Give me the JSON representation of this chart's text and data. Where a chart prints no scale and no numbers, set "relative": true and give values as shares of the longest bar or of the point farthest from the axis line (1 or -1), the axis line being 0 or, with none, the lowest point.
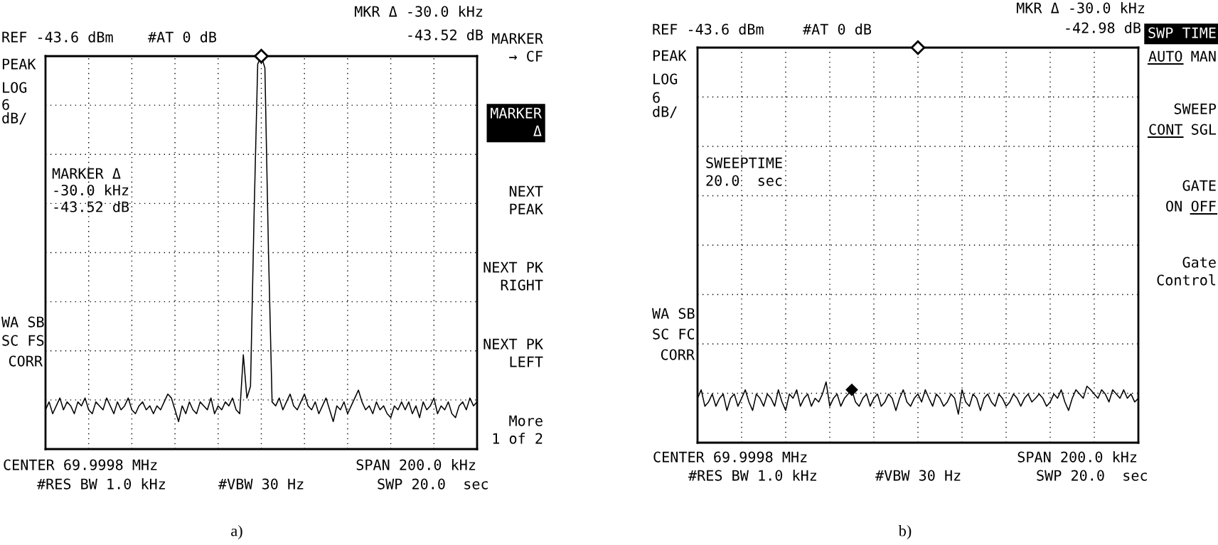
{
  "chart_data": [
    {
      "type": "line",
      "title": "a)",
      "categories": [
        null,
        null,
        null,
        null,
        null,
        null,
        null,
        null,
        null,
        null,
        null,
        null,
        null,
        null,
        null,
        null,
        null,
        null,
        null,
        null,
        null,
        null,
        null,
        null,
        null,
        null,
        null,
        null,
        null,
        null,
        null,
        null,
        null,
        null,
        null,
        null,
        null,
        null,
        null,
        null,
        null,
        null,
        null,
        null,
        null,
        null,
        null,
        null,
        null,
        null,
        null,
        null,
        null,
        null,
        null,
        null,
        null,
        null,
        null,
        null,
        null,
        null,
        null,
        null,
        null,
        null,
        null,
        null,
        null,
        null,
        null,
        null,
        null,
        null,
        null,
        null,
        null,
        null,
        null,
        null,
        null,
        null,
        null,
        null,
        null,
        null,
        null,
        null,
        null,
        null,
        null,
        null,
        null,
        null,
        null,
        null,
        null,
        null,
        null,
        null,
        null,
        null,
        null,
        null,
        null,
        null,
        null,
        null,
        null,
        null,
        null,
        null,
        null,
        null,
        null,
        null,
        null,
        null,
        null,
        null,
        null
      ],
      "series": [
        {
          "color": "#000000",
          "values": [
            0.1,
            0.12,
            0.09,
            0.11,
            0.13,
            0.1,
            0.12,
            0.11,
            0.09,
            0.12,
            0.11,
            0.13,
            0.1,
            0.09,
            0.12,
            0.11,
            0.1,
            0.13,
            0.11,
            0.09,
            0.12,
            0.1,
            0.11,
            0.13,
            0.1,
            0.09,
            0.11,
            0.12,
            0.1,
            0.11,
            0.09,
            0.11,
            0.1,
            0.12,
            0.14,
            0.13,
            0.1,
            0.07,
            0.11,
            0.09,
            0.12,
            0.1,
            0.09,
            0.12,
            0.11,
            0.1,
            0.13,
            0.09,
            0.11,
            0.1,
            0.12,
            0.11,
            0.13,
            0.1,
            0.09,
            0.24,
            0.13,
            0.16,
            0.6,
            0.98,
            1,
            0.97,
            0.5,
            0.12,
            0.11,
            0.13,
            0.1,
            0.12,
            0.14,
            0.11,
            0.1,
            0.12,
            0.14,
            0.11,
            0.1,
            0.12,
            0.09,
            0.11,
            0.13,
            0.1,
            0.07,
            0.11,
            0.1,
            0.12,
            0.09,
            0.11,
            0.13,
            0.15,
            0.12,
            0.1,
            0.11,
            0.09,
            0.12,
            0.1,
            0.11,
            0.09,
            0.08,
            0.11,
            0.1,
            0.12,
            0.1,
            0.12,
            0.09,
            0.11,
            0.08,
            0.12,
            0.1,
            0.11,
            0.13,
            0.09,
            0.11,
            0.1,
            0.12,
            0.09,
            0.08,
            0.11,
            0.12,
            0.1,
            0.13,
            0.11,
            0.12
          ]
        }
      ],
      "relative": true,
      "grid": true,
      "annotations": [
        "REF -43.6 dBm",
        "#AT 0 dB",
        "MKR Δ -30.0 kHz",
        "-43.52 dB",
        "PEAK",
        "LOG",
        "6",
        "dB/",
        "MARKER Δ\n-30.0 kHz\n-43.52 dB",
        "WA SB",
        "SC FS",
        "CORR",
        "CENTER 69.9998 MHz",
        "SPAN 200.0 kHz",
        "#RES BW 1.0 kHz",
        "#VBW 30 Hz",
        "SWP 20.0  sec",
        "MARKER\n→ CF",
        "MARKER\nΔ",
        "NEXT\nPEAK",
        "NEXT PK\nRIGHT",
        "NEXT PK\nLEFT",
        "More\n1 of 2"
      ]
    },
    {
      "type": "line",
      "title": "b)",
      "categories": [
        null,
        null,
        null,
        null,
        null,
        null,
        null,
        null,
        null,
        null,
        null,
        null,
        null,
        null,
        null,
        null,
        null,
        null,
        null,
        null,
        null,
        null,
        null,
        null,
        null,
        null,
        null,
        null,
        null,
        null,
        null,
        null,
        null,
        null,
        null,
        null,
        null,
        null,
        null,
        null,
        null,
        null,
        null,
        null,
        null,
        null,
        null,
        null,
        null,
        null,
        null,
        null,
        null,
        null,
        null,
        null,
        null,
        null,
        null,
        null,
        null,
        null,
        null,
        null,
        null,
        null,
        null,
        null,
        null,
        null,
        null,
        null,
        null,
        null,
        null,
        null,
        null,
        null,
        null,
        null,
        null,
        null,
        null,
        null,
        null,
        null,
        null,
        null,
        null,
        null,
        null,
        null,
        null,
        null,
        null,
        null,
        null,
        null,
        null,
        null,
        null,
        null,
        null,
        null,
        null,
        null,
        null,
        null,
        null,
        null,
        null,
        null,
        null,
        null,
        null,
        null,
        null,
        null,
        null,
        null,
        null
      ],
      "series": [
        {
          "color": "#000000",
          "values": [
            0.73,
            0.87,
            0.6,
            0.67,
            0.8,
            0.6,
            0.73,
            0.8,
            0.53,
            0.73,
            0.8,
            0.6,
            0.73,
            0.87,
            0.67,
            0.53,
            0.8,
            0.73,
            0.6,
            0.8,
            0.73,
            0.6,
            0.87,
            0.67,
            0.53,
            0.8,
            0.73,
            0.87,
            0.6,
            0.73,
            0.8,
            0.6,
            0.73,
            0.67,
            0.8,
            1,
            0.6,
            0.73,
            0.8,
            0.6,
            0.73,
            0.8,
            0.87,
            0.67,
            0.6,
            0.73,
            0.8,
            0.6,
            0.73,
            0.8,
            0.6,
            0.67,
            0.8,
            0.73,
            0.53,
            0.73,
            0.87,
            0.67,
            0.6,
            0.73,
            0.8,
            0.67,
            0.87,
            0.73,
            0.6,
            0.8,
            0.73,
            0.6,
            0.67,
            0.8,
            0.73,
            0.47,
            0.87,
            0.67,
            0.6,
            0.8,
            0.73,
            0.53,
            0.73,
            0.8,
            0.67,
            0.6,
            0.8,
            0.73,
            0.6,
            0.67,
            0.8,
            0.73,
            0.6,
            0.73,
            0.8,
            0.67,
            0.73,
            0.8,
            0.73,
            0.6,
            0.67,
            0.8,
            0.73,
            0.87,
            0.67,
            0.53,
            0.73,
            0.87,
            0.8,
            0.73,
            0.93,
            0.87,
            0.8,
            0.73,
            0.87,
            0.8,
            0.67,
            0.87,
            0.8,
            0.73,
            0.87,
            0.73,
            0.8,
            0.67,
            0.73
          ]
        }
      ],
      "relative": true,
      "grid": true,
      "annotations": [
        "REF -43.6 dBm",
        "#AT 0 dB",
        "MKR Δ -30.0 kHz",
        "-42.98 dB",
        "SWP TIME",
        "AUTO",
        "MAN",
        "SWEEP",
        "CONT",
        "SGL",
        "GATE",
        "ON",
        "OFF",
        "Gate\nControl",
        "PEAK",
        "LOG",
        "6",
        "dB/",
        "SWEEPTIME\n20.0  sec",
        "WA SB",
        "SC FC",
        "CORR",
        "CENTER 69.9998 MHz",
        "SPAN 200.0 kHz",
        "#RES BW 1.0 kHz",
        "#VBW 30 Hz",
        "SWP 20.0  sec"
      ]
    }
  ]
}
